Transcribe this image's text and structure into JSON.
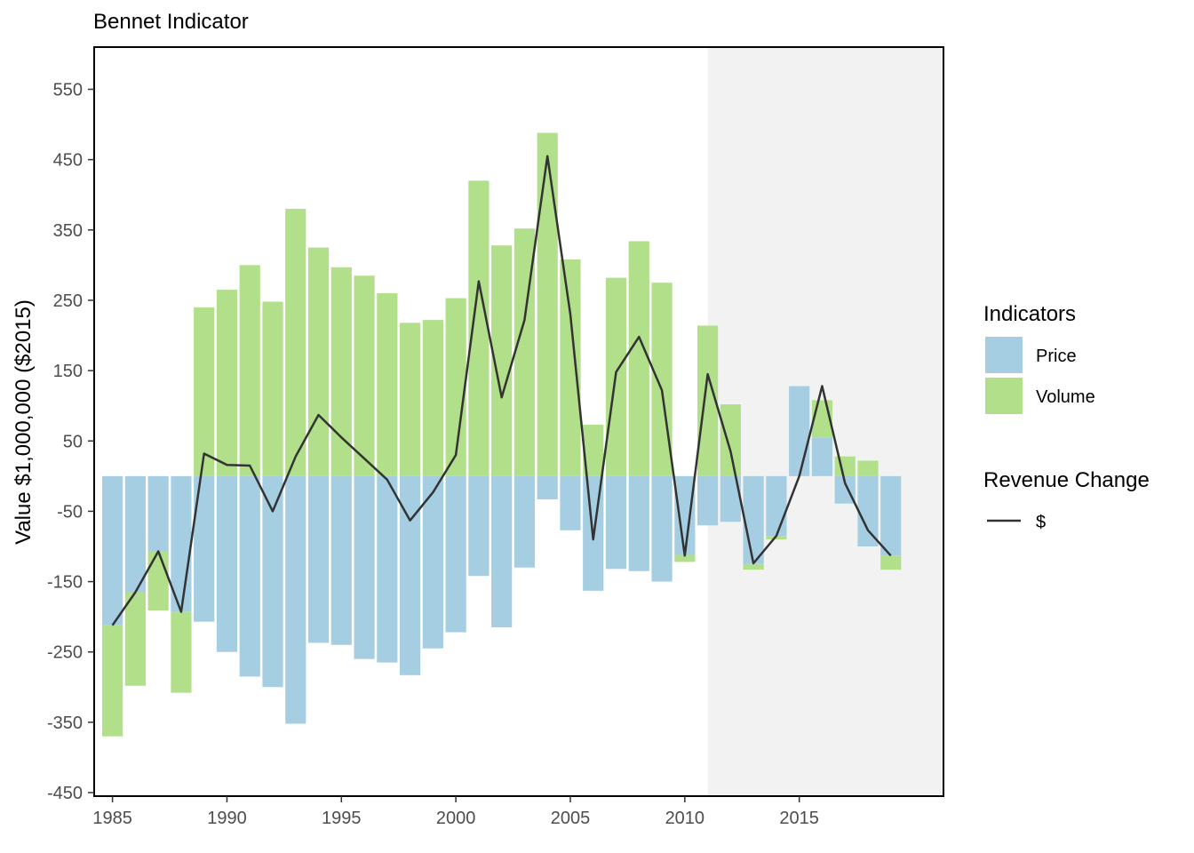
{
  "chart_data": {
    "type": "bar",
    "title": "Bennet Indicator",
    "xlabel": "",
    "ylabel": "Value $1,000,000 ($2015)",
    "x": [
      1985,
      1986,
      1987,
      1988,
      1989,
      1990,
      1991,
      1992,
      1993,
      1994,
      1995,
      1996,
      1997,
      1998,
      1999,
      2000,
      2001,
      2002,
      2003,
      2004,
      2005,
      2006,
      2007,
      2008,
      2009,
      2010,
      2011,
      2012,
      2013,
      2014,
      2015,
      2016,
      2017,
      2018,
      2019
    ],
    "xlim": [
      1984.2,
      2021.3
    ],
    "ylim": [
      -455,
      610
    ],
    "x_ticks": [
      "1985",
      "1990",
      "1995",
      "2000",
      "2005",
      "2010",
      "2015"
    ],
    "y_ticks": [
      "550",
      "450",
      "350",
      "250",
      "150",
      "50",
      "-50",
      "-150",
      "-250",
      "-350",
      "-450"
    ],
    "shaded_region": {
      "from": 2011,
      "to": 2021.3,
      "color": "#f2f2f2"
    },
    "grid": false,
    "legend_position": "right",
    "series": [
      {
        "name": "Price",
        "color": "#a6cee3",
        "values": [
          -212,
          -165,
          -107,
          -193,
          -207,
          -250,
          -285,
          -300,
          -352,
          -237,
          -240,
          -260,
          -265,
          -283,
          -245,
          -222,
          -142,
          -215,
          -130,
          -33,
          -77,
          -163,
          -132,
          -135,
          -150,
          -112,
          -70,
          -65,
          -125,
          -85,
          128,
          55,
          -39,
          -100,
          -113
        ]
      },
      {
        "name": "Volume",
        "color": "#b2df8a",
        "values": [
          -158,
          -133,
          -84,
          -115,
          240,
          265,
          300,
          248,
          380,
          325,
          297,
          285,
          260,
          218,
          222,
          253,
          420,
          328,
          352,
          488,
          308,
          73,
          282,
          334,
          275,
          -10,
          214,
          102,
          -8,
          -5,
          0,
          53,
          28,
          22,
          -20
        ]
      }
    ],
    "line": {
      "name": "$",
      "legend_title": "Revenue Change",
      "color": "#333333",
      "values": [
        -212,
        -165,
        -107,
        -193,
        32,
        16,
        15,
        -50,
        28,
        87,
        55,
        25,
        -5,
        -63,
        -23,
        30,
        277,
        112,
        222,
        455,
        230,
        -90,
        148,
        198,
        122,
        -113,
        145,
        35,
        -124,
        -85,
        0,
        128,
        -10,
        -77,
        -113
      ]
    },
    "legend": {
      "title": "Indicators"
    }
  }
}
